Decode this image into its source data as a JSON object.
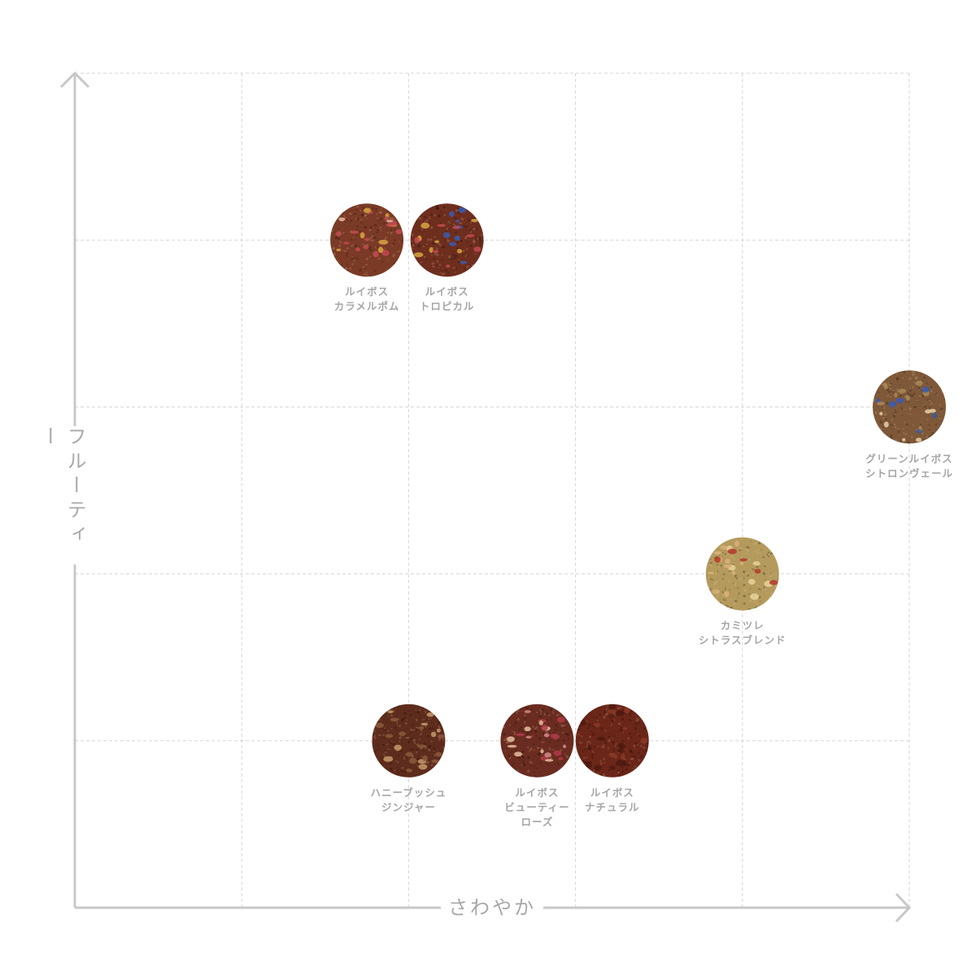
{
  "chart_data": {
    "type": "scatter",
    "xlabel": "さわやか",
    "ylabel": "フルーティー",
    "xlim": [
      0,
      5
    ],
    "ylim": [
      0,
      5
    ],
    "grid": true,
    "points": [
      {
        "label": [
          "ルイボス",
          "カラメルポム"
        ],
        "x": 1.75,
        "y": 4,
        "color": "#7a3a26",
        "accent": [
          "#e8b9a0",
          "#d9a441",
          "#c44a52"
        ]
      },
      {
        "label": [
          "ルイボス",
          "トロピカル"
        ],
        "x": 2.23,
        "y": 4,
        "color": "#6e2e1e",
        "accent": [
          "#3b5bb0",
          "#d9a441",
          "#c44a52"
        ]
      },
      {
        "label": [
          "グリーンルイボス",
          "シトロンヴェール"
        ],
        "x": 5,
        "y": 3,
        "color": "#7e5838",
        "accent": [
          "#3b5bb0",
          "#e6cfa5",
          "#a88858"
        ]
      },
      {
        "label": [
          "カミツレ",
          "シトラスブレンド"
        ],
        "x": 4,
        "y": 2,
        "color": "#b49a5c",
        "accent": [
          "#e8d49a",
          "#b43a2a",
          "#d9b27a"
        ]
      },
      {
        "label": [
          "ハニーブッシュ",
          "ジンジャー"
        ],
        "x": 2,
        "y": 1,
        "color": "#5e2c1c",
        "accent": [
          "#c49a6a",
          "#8a5a3a"
        ]
      },
      {
        "label": [
          "ルイボス",
          "ビューティー",
          "ローズ"
        ],
        "x": 2.77,
        "y": 1,
        "color": "#6a2c20",
        "accent": [
          "#d68a8a",
          "#b03a4a",
          "#e6c0a0"
        ]
      },
      {
        "label": [
          "ルイボス",
          "ナチュラル"
        ],
        "x": 3.22,
        "y": 1,
        "color": "#6a2618",
        "accent": [
          "#8a3a24",
          "#4e1a10"
        ]
      }
    ]
  }
}
